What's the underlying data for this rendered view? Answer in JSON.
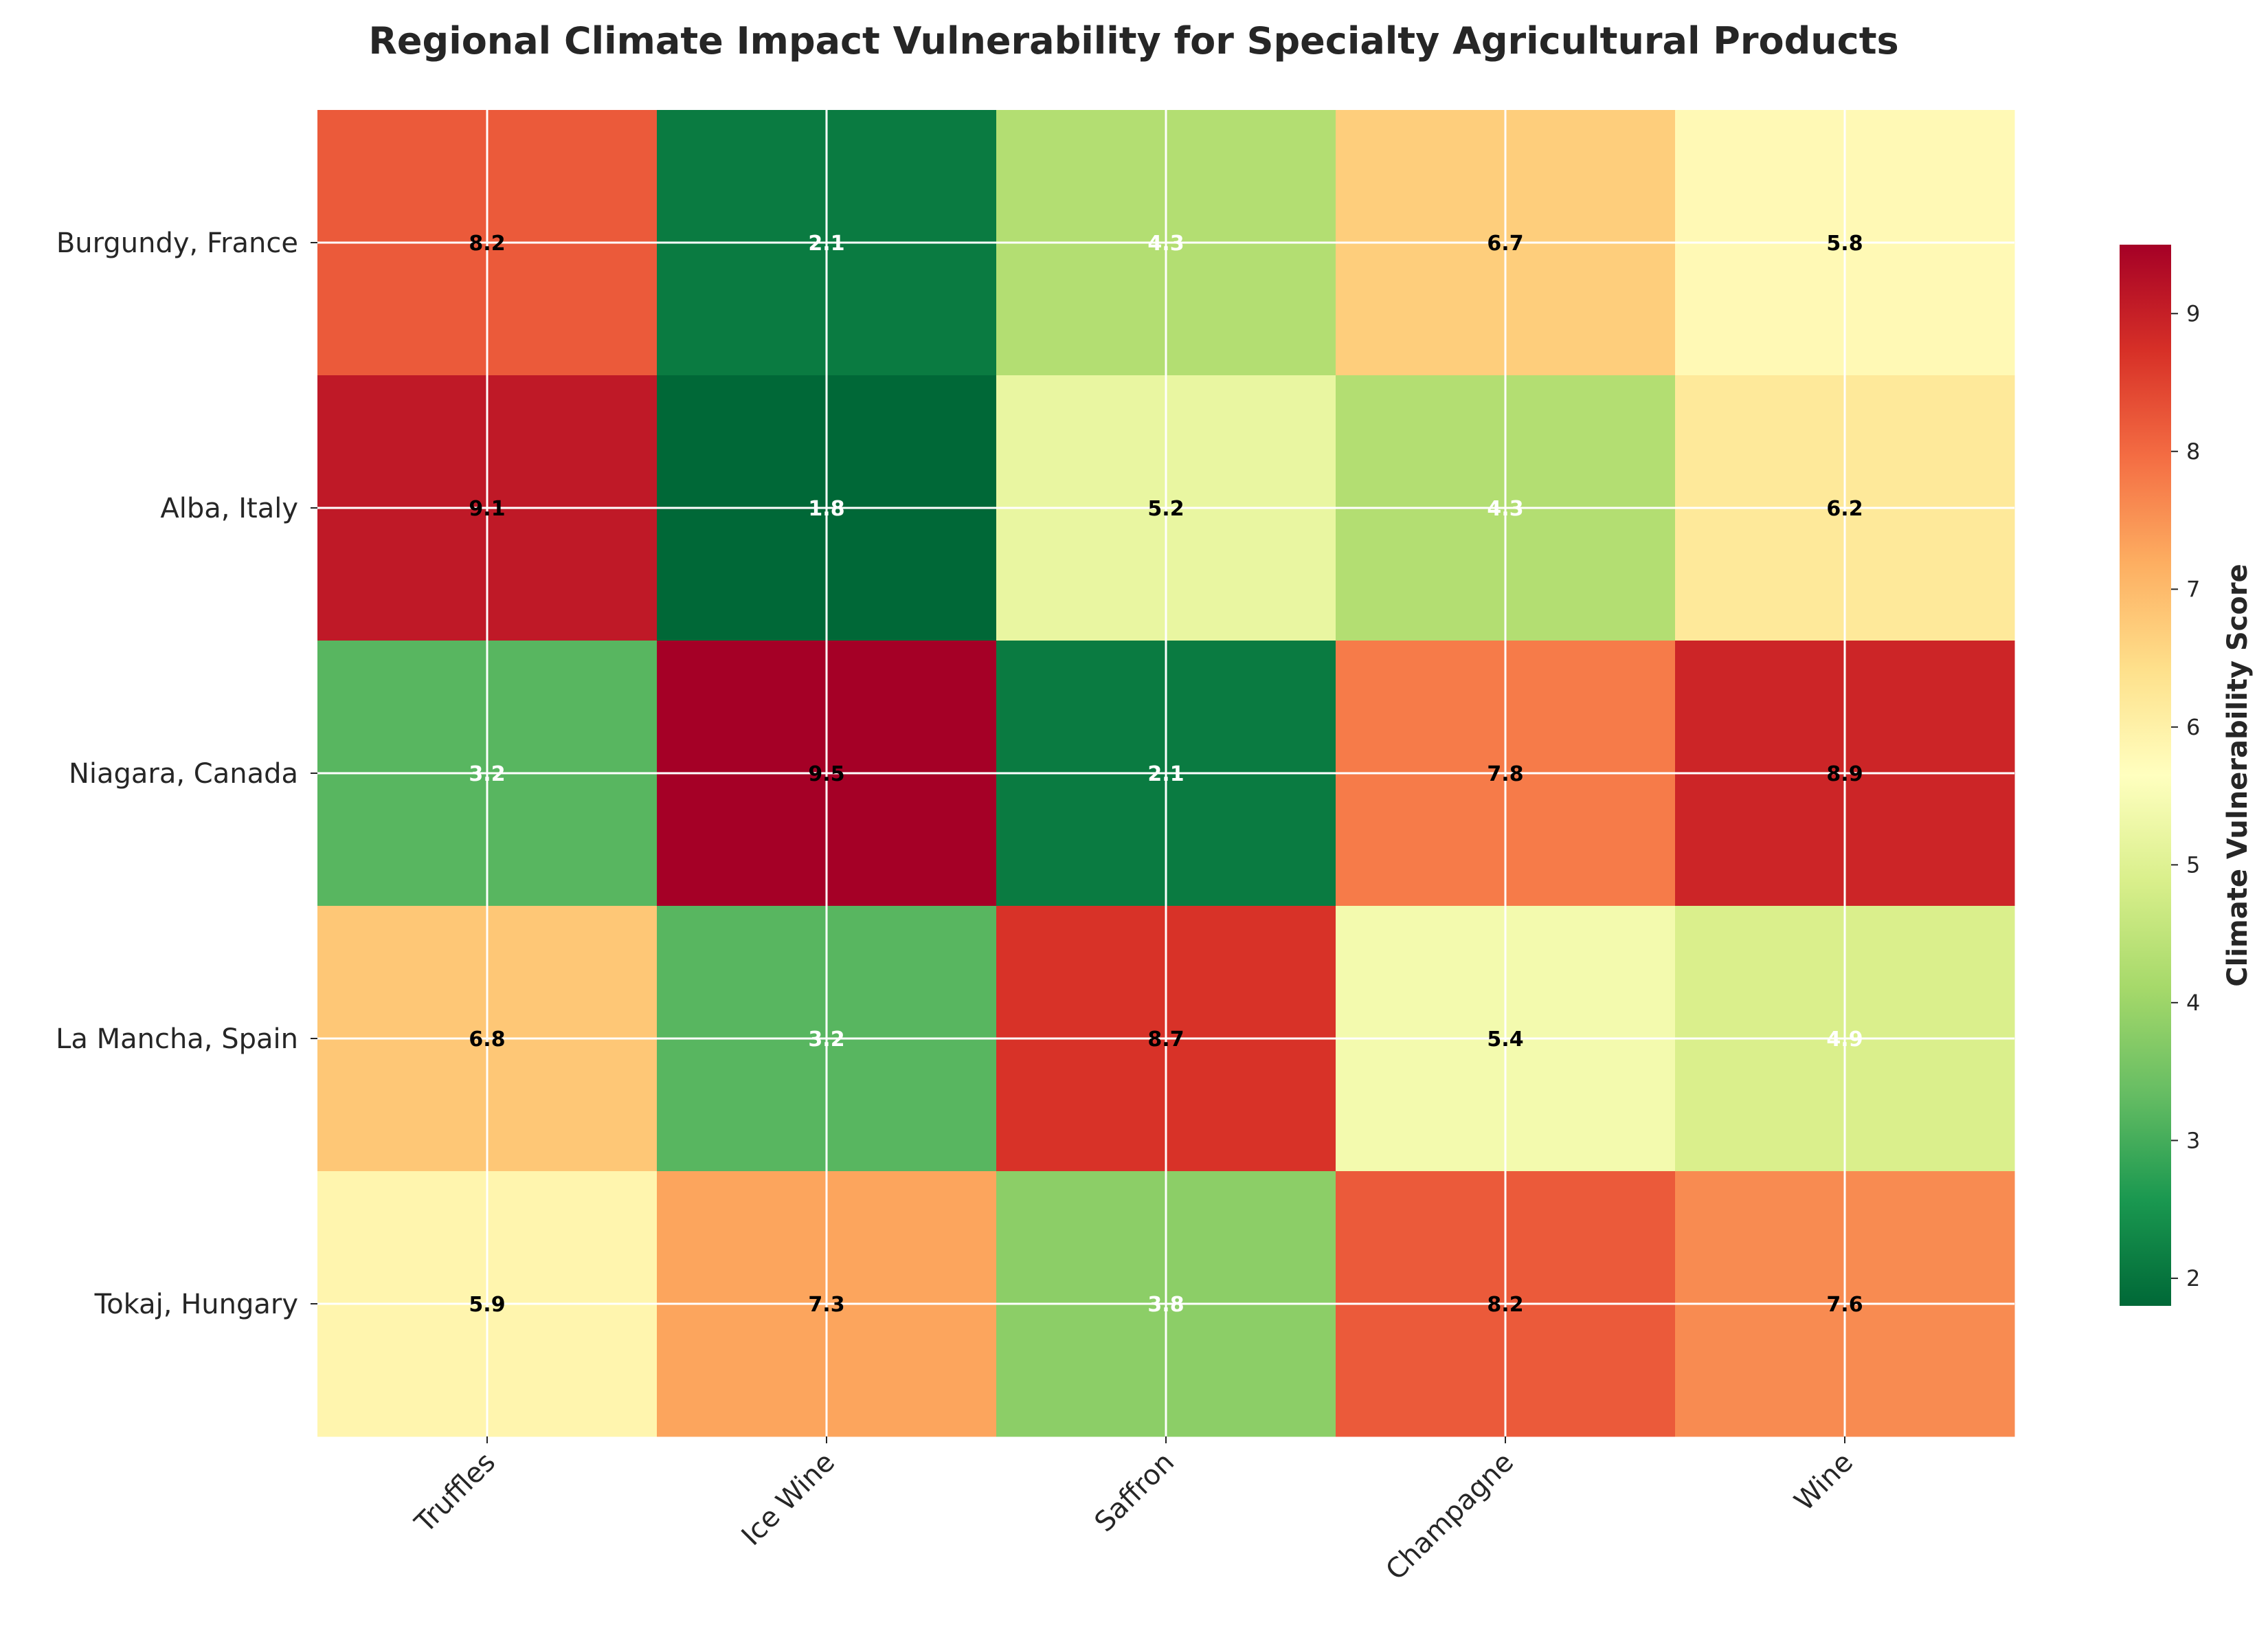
{
  "chart_data": {
    "type": "heatmap",
    "title": "Regional Climate Impact Vulnerability for Specialty Agricultural Products",
    "rows": [
      "Burgundy, France",
      "Alba, Italy",
      "Niagara, Canada",
      "La Mancha, Spain",
      "Tokaj, Hungary"
    ],
    "columns": [
      "Truffles",
      "Ice Wine",
      "Saffron",
      "Champagne",
      "Wine"
    ],
    "values": [
      [
        8.2,
        2.1,
        4.3,
        6.7,
        5.8
      ],
      [
        9.1,
        1.8,
        5.2,
        4.3,
        6.2
      ],
      [
        3.2,
        9.5,
        2.1,
        7.8,
        8.9
      ],
      [
        6.8,
        3.2,
        8.7,
        5.4,
        4.9
      ],
      [
        5.9,
        7.3,
        3.8,
        8.2,
        7.6
      ]
    ],
    "value_labels": [
      [
        "8.2",
        "2.1",
        "4.3",
        "6.7",
        "5.8"
      ],
      [
        "9.1",
        "1.8",
        "5.2",
        "4.3",
        "6.2"
      ],
      [
        "3.2",
        "9.5",
        "2.1",
        "7.8",
        "8.9"
      ],
      [
        "6.8",
        "3.2",
        "8.7",
        "5.4",
        "4.9"
      ],
      [
        "5.9",
        "7.3",
        "3.8",
        "8.2",
        "7.6"
      ]
    ],
    "colorbar": {
      "label": "Climate Vulnerability Score",
      "range": [
        1.8,
        9.5
      ],
      "ticks": [
        2,
        3,
        4,
        5,
        6,
        7,
        8,
        9
      ],
      "tick_labels": [
        "2",
        "3",
        "4",
        "5",
        "6",
        "7",
        "8",
        "9"
      ],
      "colormap": "RdYlGn_r",
      "colormap_stops": [
        "#006837",
        "#1a9850",
        "#66bd63",
        "#a6d96a",
        "#d9ef8b",
        "#ffffbf",
        "#fee08b",
        "#fdae61",
        "#f46d43",
        "#d73027",
        "#a50026"
      ]
    },
    "grid": true
  }
}
